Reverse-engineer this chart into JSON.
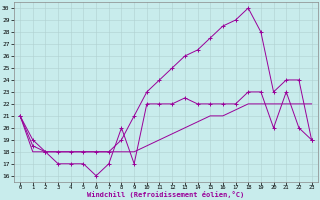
{
  "background_color": "#c8ecec",
  "line_color": "#990099",
  "grid_color": "#b0d0d0",
  "xlabel": "Windchill (Refroidissement éolien,°C)",
  "xlim": [
    -0.5,
    23.5
  ],
  "ylim": [
    15.5,
    30.5
  ],
  "xticks": [
    0,
    1,
    2,
    3,
    4,
    5,
    6,
    7,
    8,
    9,
    10,
    11,
    12,
    13,
    14,
    15,
    16,
    17,
    18,
    19,
    20,
    21,
    22,
    23
  ],
  "yticks": [
    16,
    17,
    18,
    19,
    20,
    21,
    22,
    23,
    24,
    25,
    26,
    27,
    28,
    29,
    30
  ],
  "line1_x": [
    0,
    1,
    2,
    3,
    4,
    5,
    6,
    7,
    8,
    9,
    10,
    11,
    12,
    13,
    14,
    15,
    16,
    17,
    18,
    19,
    20,
    21,
    22,
    23
  ],
  "line1_y": [
    21,
    19,
    18,
    17,
    17,
    17,
    16,
    17,
    20,
    17,
    22,
    22,
    22,
    22.5,
    22,
    22,
    22,
    22,
    23,
    23,
    20,
    23,
    20,
    19
  ],
  "line2_x": [
    0,
    1,
    2,
    3,
    4,
    5,
    6,
    7,
    8,
    9,
    10,
    11,
    12,
    13,
    14,
    15,
    16,
    17,
    18,
    19,
    20,
    21,
    22,
    23
  ],
  "line2_y": [
    21,
    18,
    18,
    18,
    18,
    18,
    18,
    18,
    18,
    18,
    18.5,
    19,
    19.5,
    20,
    20.5,
    21,
    21,
    21.5,
    22,
    22,
    22,
    22,
    22,
    22
  ],
  "line3_x": [
    0,
    1,
    2,
    3,
    4,
    5,
    6,
    7,
    8,
    9,
    10,
    11,
    12,
    13,
    14,
    15,
    16,
    17,
    18,
    19,
    20,
    21,
    22,
    23
  ],
  "line3_y": [
    21,
    18.5,
    18,
    18,
    18,
    18,
    18,
    18,
    19,
    21,
    23,
    24,
    25,
    26,
    26.5,
    27.5,
    28.5,
    29,
    30,
    28,
    23,
    24,
    24,
    19
  ]
}
